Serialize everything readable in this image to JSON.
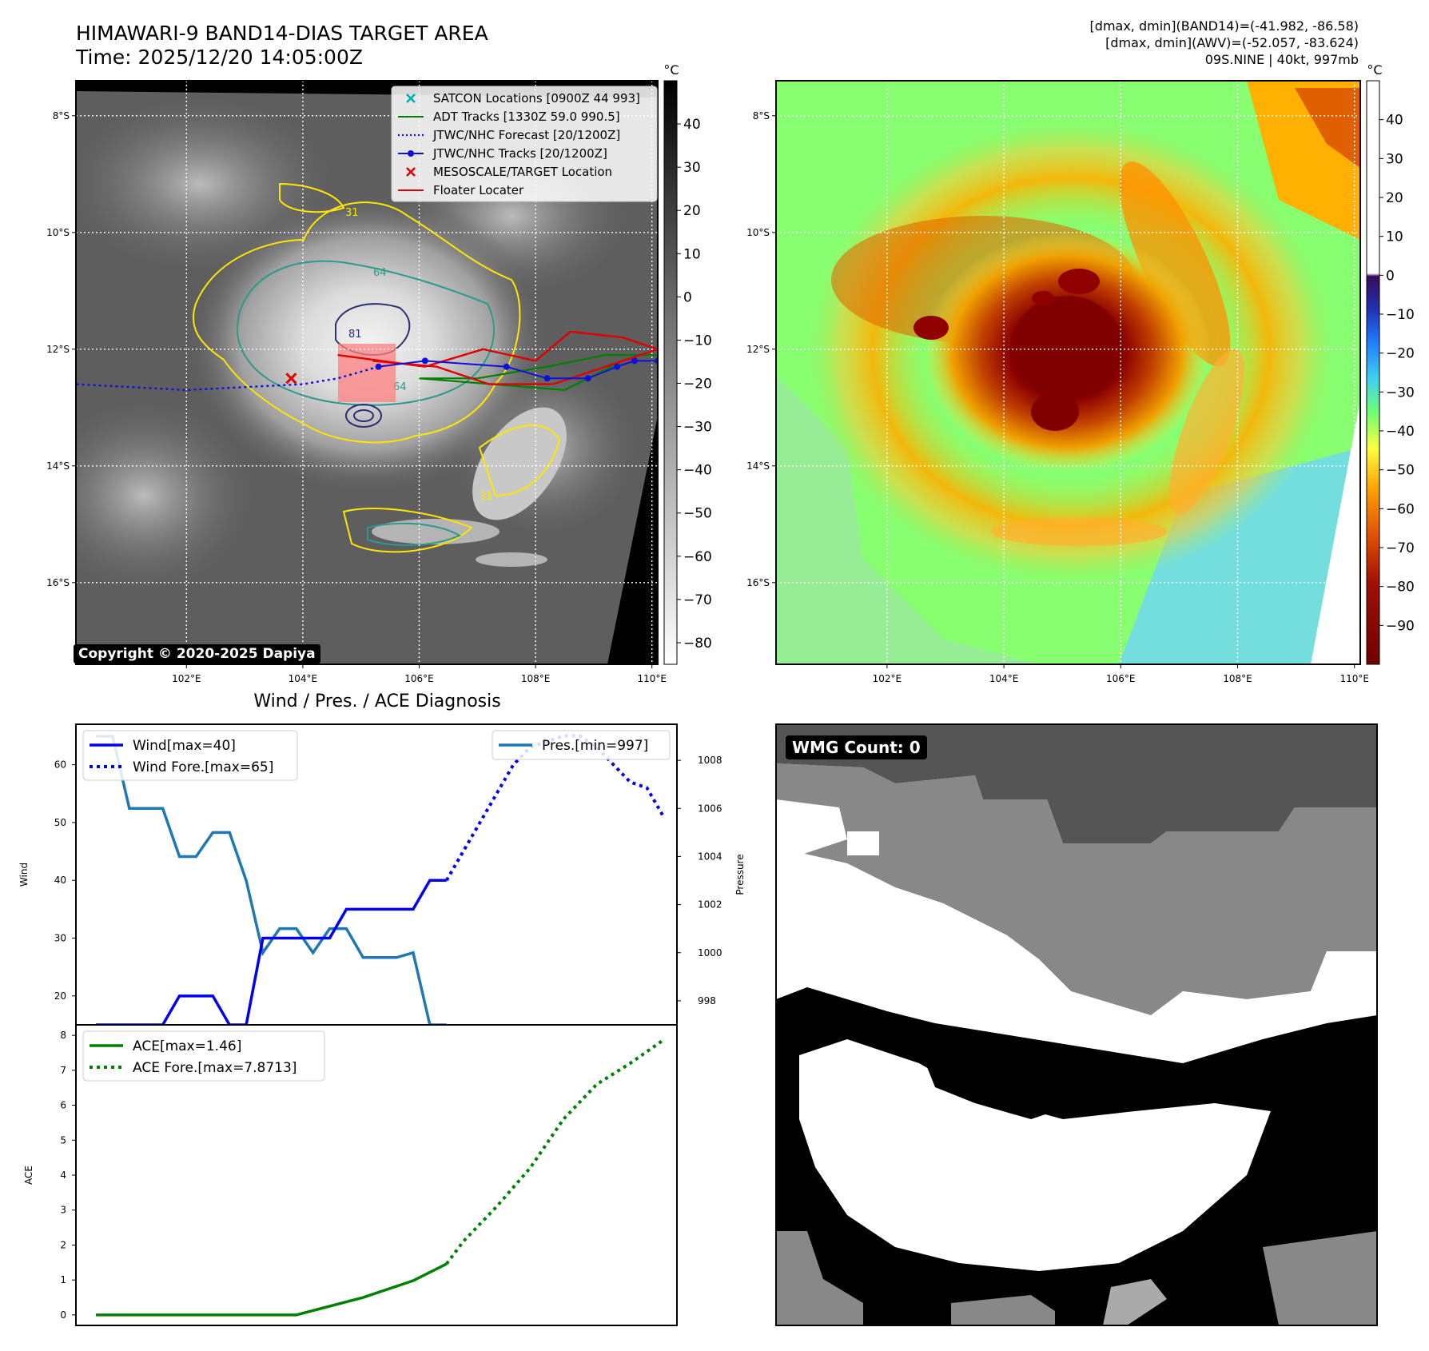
{
  "header": {
    "title": "HIMAWARI-9 BAND14-DIAS TARGET AREA",
    "time": "Time: 2025/12/20 14:05:00Z",
    "info": [
      "[dmax, dmin](BAND14)=(-41.982, -86.58)",
      "[dmax, dmin](AWV)=(-52.057, -83.624)",
      "09S.NINE | 40kt, 997mb"
    ]
  },
  "copyright": "Copyright © 2020-2025 Dapiya",
  "wmg_label": "WMG Count: 0",
  "colors": {
    "wind": "#0000ee",
    "pressure": "#1f77b4",
    "ace": "#008000",
    "track_red": "#e00000",
    "adt_green": "#008000",
    "jtwc_blue": "#1010dd",
    "satcon": "#00b0b0"
  },
  "chart_data": [
    {
      "type": "heatmap",
      "name": "band14-map",
      "lon_ticks": [
        "102°E",
        "104°E",
        "106°E",
        "108°E",
        "110°E"
      ],
      "lat_ticks": [
        "8°S",
        "10°S",
        "12°S",
        "14°S",
        "16°S"
      ],
      "lon_values": [
        102,
        104,
        106,
        108,
        110
      ],
      "lat_values": [
        -8,
        -10,
        -12,
        -14,
        -16
      ],
      "lon_range": [
        100.1,
        110.1
      ],
      "lat_range": [
        -17.4,
        -7.4
      ],
      "colorbar": {
        "unit": "°C",
        "ticks": [
          40,
          30,
          20,
          10,
          0,
          -10,
          -20,
          -30,
          -40,
          -50,
          -60,
          -70,
          -80
        ],
        "range": [
          -85,
          50
        ]
      },
      "contour_labels": [
        "31",
        "64",
        "81",
        "64",
        "31"
      ],
      "legend": [
        {
          "label": "SATCON Locations [0900Z 44 993]",
          "marker": "x",
          "color": "#00b0b0"
        },
        {
          "label": "ADT Tracks [1330Z 59.0 990.5]",
          "marker": "line",
          "color": "#008000"
        },
        {
          "label": "JTWC/NHC Forecast [20/1200Z]",
          "marker": "dotted",
          "color": "#1010dd"
        },
        {
          "label": "JTWC/NHC Tracks [20/1200Z]",
          "marker": "line-dot",
          "color": "#1010dd"
        },
        {
          "label": "MESOSCALE/TARGET Location",
          "marker": "x",
          "color": "#e00000"
        },
        {
          "label": "Floater Locater",
          "marker": "line",
          "color": "#e00000"
        }
      ],
      "jtwc_track": [
        [
          110.1,
          -12.2
        ],
        [
          109.7,
          -12.2
        ],
        [
          109.4,
          -12.3
        ],
        [
          108.9,
          -12.5
        ],
        [
          108.2,
          -12.5
        ],
        [
          107.5,
          -12.3
        ],
        [
          106.1,
          -12.2
        ],
        [
          105.3,
          -12.3
        ]
      ],
      "jtwc_forecast": [
        [
          105.3,
          -12.3
        ],
        [
          104.6,
          -12.5
        ],
        [
          104.0,
          -12.6
        ],
        [
          102.0,
          -12.7
        ],
        [
          100.1,
          -12.6
        ]
      ],
      "target_location": [
        103.8,
        -12.5
      ],
      "adt_track": [
        [
          110.1,
          -12.1
        ],
        [
          109.2,
          -12.1
        ],
        [
          108.2,
          -12.3
        ],
        [
          107.0,
          -12.5
        ],
        [
          106.0,
          -12.5
        ],
        [
          108.5,
          -12.7
        ],
        [
          109.5,
          -12.2
        ]
      ],
      "floater_track": [
        [
          104.6,
          -12.1
        ],
        [
          106.1,
          -12.3
        ],
        [
          107.1,
          -12.0
        ],
        [
          108.0,
          -12.2
        ],
        [
          108.6,
          -11.7
        ],
        [
          109.5,
          -11.8
        ],
        [
          110.1,
          -12.0
        ],
        [
          108.3,
          -12.6
        ],
        [
          107.2,
          -12.6
        ],
        [
          106.3,
          -12.3
        ],
        [
          105.2,
          -12.2
        ]
      ]
    },
    {
      "type": "heatmap",
      "name": "awv-map",
      "lon_ticks": [
        "102°E",
        "104°E",
        "106°E",
        "108°E",
        "110°E"
      ],
      "lat_ticks": [
        "8°S",
        "10°S",
        "12°S",
        "14°S",
        "16°S"
      ],
      "lon_values": [
        102,
        104,
        106,
        108,
        110
      ],
      "lat_values": [
        -8,
        -10,
        -12,
        -14,
        -16
      ],
      "colorbar": {
        "unit": "°C",
        "ticks": [
          40,
          30,
          20,
          10,
          0,
          -10,
          -20,
          -30,
          -40,
          -50,
          -60,
          -70,
          -80,
          -90
        ],
        "range": [
          -100,
          50
        ]
      }
    },
    {
      "type": "line",
      "name": "wind-pressure",
      "title": "Wind / Pres. / ACE Diagnosis",
      "ylabel": "Wind",
      "y2label": "Pressure",
      "ylim": [
        15,
        67
      ],
      "y2lim": [
        997,
        1009.5
      ],
      "yticks": [
        20,
        30,
        40,
        50,
        60
      ],
      "y2ticks": [
        998,
        1000,
        1002,
        1004,
        1006,
        1008
      ],
      "x": [
        0,
        1,
        2,
        3,
        4,
        5,
        6,
        7,
        8,
        9,
        10,
        11,
        12,
        13,
        14,
        15,
        16,
        17,
        18,
        19,
        20,
        21,
        22,
        23,
        24,
        25,
        26,
        27,
        28,
        29,
        30,
        31,
        32,
        33,
        34
      ],
      "xlim": [
        -1.2,
        34.8
      ],
      "series": [
        {
          "name": "Wind[max=40]",
          "style": "solid",
          "x": [
            0,
            1,
            2,
            3,
            4,
            5,
            6,
            7,
            8,
            9,
            10,
            11,
            12,
            13,
            14,
            15,
            16,
            17,
            18,
            19,
            20,
            21
          ],
          "values": [
            15,
            15,
            15,
            15,
            15,
            20,
            20,
            20,
            15,
            15,
            30,
            30,
            30,
            30,
            30,
            35,
            35,
            35,
            35,
            35,
            40,
            40
          ]
        },
        {
          "name": "Wind Fore.[max=65]",
          "style": "dotted",
          "x": [
            21,
            22,
            23,
            24,
            25,
            26,
            27,
            28,
            29,
            30,
            31,
            32,
            33,
            34
          ],
          "values": [
            40,
            45,
            50,
            55,
            60,
            63,
            64,
            65,
            65,
            63,
            60,
            57,
            56,
            51
          ]
        },
        {
          "name": "Pres.[min=997]",
          "style": "solid",
          "axis": "right",
          "x": [
            0,
            1,
            2,
            3,
            4,
            5,
            6,
            7,
            8,
            9,
            10,
            11,
            12,
            13,
            14,
            15,
            16,
            17,
            18,
            19,
            20,
            21
          ],
          "values": [
            1009,
            1009,
            1006,
            1006,
            1006,
            1004,
            1004,
            1005,
            1005,
            1003,
            1000,
            1001,
            1001,
            1000,
            1001,
            1001,
            999.8,
            999.8,
            999.8,
            1000,
            997,
            997
          ]
        }
      ]
    },
    {
      "type": "line",
      "name": "ace",
      "ylabel": "ACE",
      "ylim": [
        -0.3,
        8.3
      ],
      "yticks": [
        0,
        1,
        2,
        3,
        4,
        5,
        6,
        7,
        8
      ],
      "xlim": [
        -1.2,
        34.8
      ],
      "series": [
        {
          "name": "ACE[max=1.46]",
          "style": "solid",
          "x": [
            0,
            4,
            8,
            12,
            16,
            19,
            21
          ],
          "values": [
            0,
            0,
            0,
            0,
            0.5,
            0.98,
            1.46
          ]
        },
        {
          "name": "ACE Fore.[max=7.8713]",
          "style": "dotted",
          "x": [
            21,
            22,
            24,
            26,
            28,
            30,
            32,
            34
          ],
          "values": [
            1.46,
            2.1,
            3.1,
            4.2,
            5.6,
            6.6,
            7.2,
            7.87
          ]
        }
      ]
    }
  ]
}
